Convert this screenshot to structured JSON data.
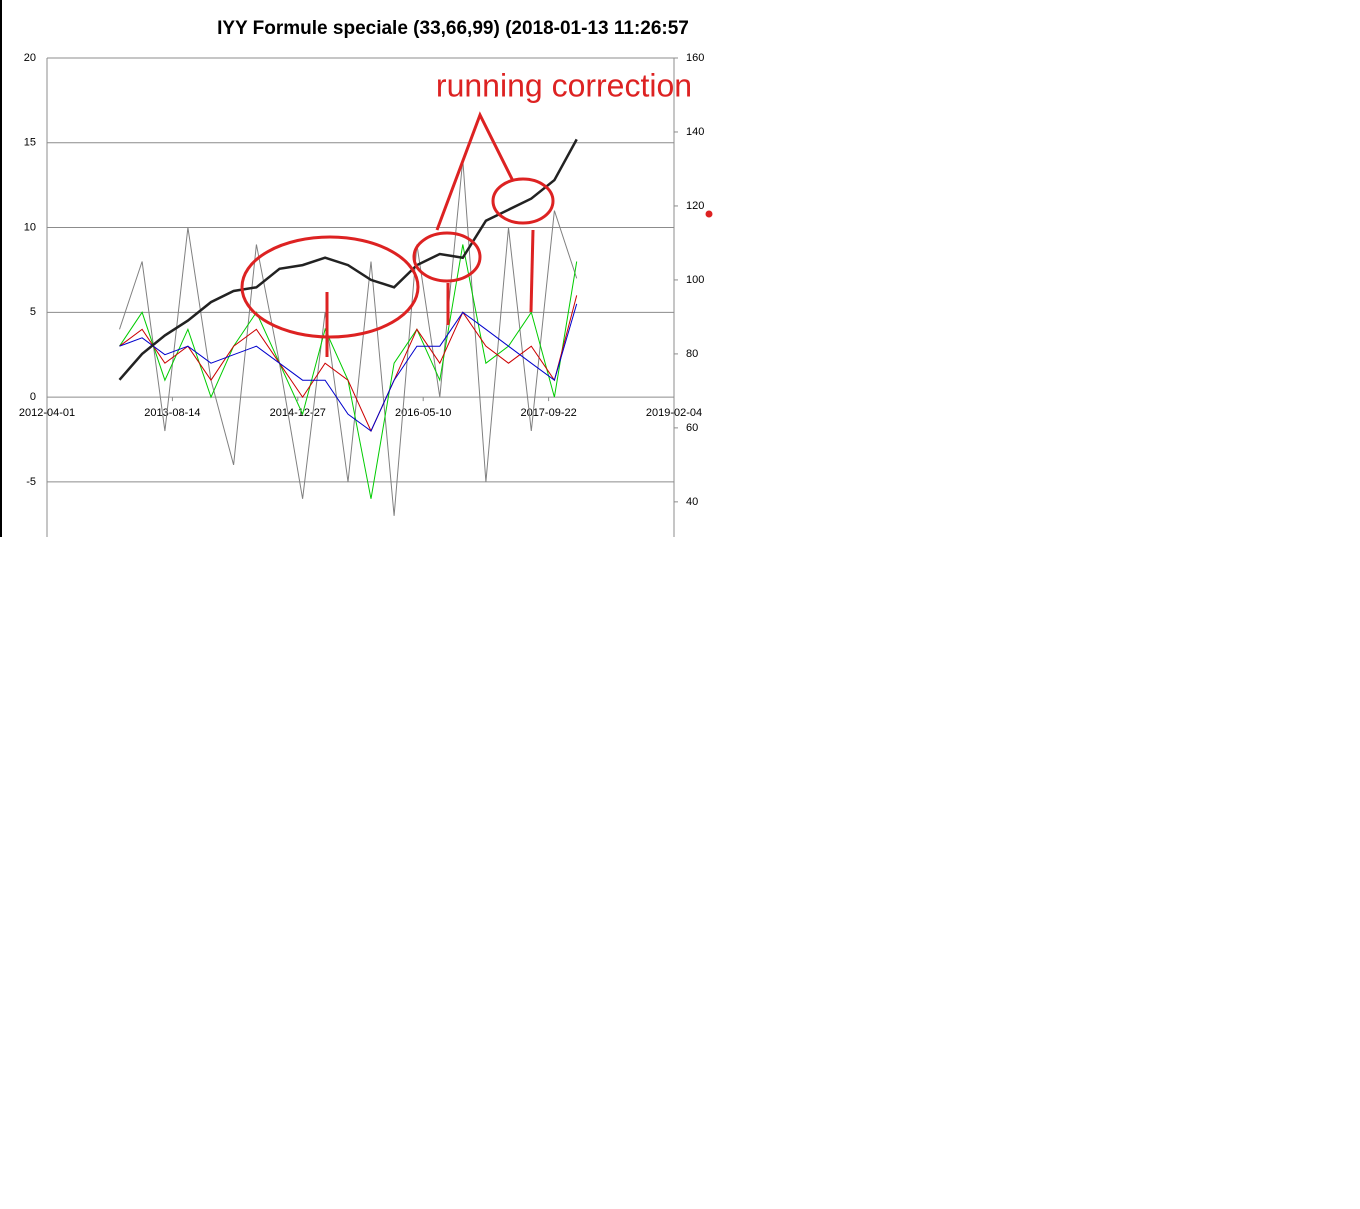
{
  "chart_data": {
    "type": "line",
    "title": "IYY Formule speciale (33,66,99) (2018-01-13 11:26:57",
    "annotations": [
      "running correction"
    ],
    "x": [
      "2013-01-15",
      "2013-04-15",
      "2013-07-15",
      "2013-10-15",
      "2014-01-15",
      "2014-04-15",
      "2014-07-15",
      "2014-10-15",
      "2015-01-15",
      "2015-04-15",
      "2015-07-15",
      "2015-10-15",
      "2016-01-15",
      "2016-04-15",
      "2016-07-15",
      "2016-10-15",
      "2017-01-15",
      "2017-04-15",
      "2017-07-15",
      "2017-10-15",
      "2018-01-12"
    ],
    "xlim": [
      "2012-04-01",
      "2019-02-04"
    ],
    "xticks": [
      "2012-04-01",
      "2013-08-14",
      "2014-12-27",
      "2016-05-10",
      "2017-09-22",
      "2019-02-04"
    ],
    "ylim": [
      -8.25,
      20
    ],
    "yticks": [
      -5,
      0,
      5,
      10,
      15,
      20
    ],
    "y2lim": [
      30.5,
      160
    ],
    "y2ticks": [
      40,
      60,
      80,
      100,
      120,
      140,
      160
    ],
    "grid": true,
    "series": [
      {
        "color": "#808080",
        "values": [
          4,
          8,
          -2,
          10,
          1,
          -4,
          9,
          2,
          -6,
          5,
          -5,
          8,
          -7,
          9,
          0,
          14,
          -5,
          10,
          -2,
          11,
          7
        ]
      },
      {
        "color": "#00cc00",
        "values": [
          3,
          5,
          1,
          4,
          0,
          3,
          5,
          2,
          -1,
          4,
          1,
          -6,
          2,
          4,
          1,
          9,
          2,
          3,
          5,
          0,
          8
        ]
      },
      {
        "color": "#cc0000",
        "values": [
          3,
          4,
          2,
          3,
          1,
          3,
          4,
          2,
          0,
          2,
          1,
          -2,
          1,
          4,
          2,
          5,
          3,
          2,
          3,
          1,
          6
        ]
      },
      {
        "color": "#0000cc",
        "values": [
          3,
          3.5,
          2.5,
          3,
          2,
          2.5,
          3,
          2,
          1,
          1,
          -1,
          -2,
          1,
          3,
          3,
          5,
          4,
          3,
          2,
          1,
          5.5
        ]
      },
      {
        "color": "#222222",
        "axis": "y2",
        "values": [
          73,
          80,
          85,
          89,
          94,
          97,
          98,
          103,
          104,
          106,
          104,
          100,
          98,
          104,
          107,
          106,
          116,
          119,
          122,
          127,
          138
        ]
      }
    ]
  }
}
